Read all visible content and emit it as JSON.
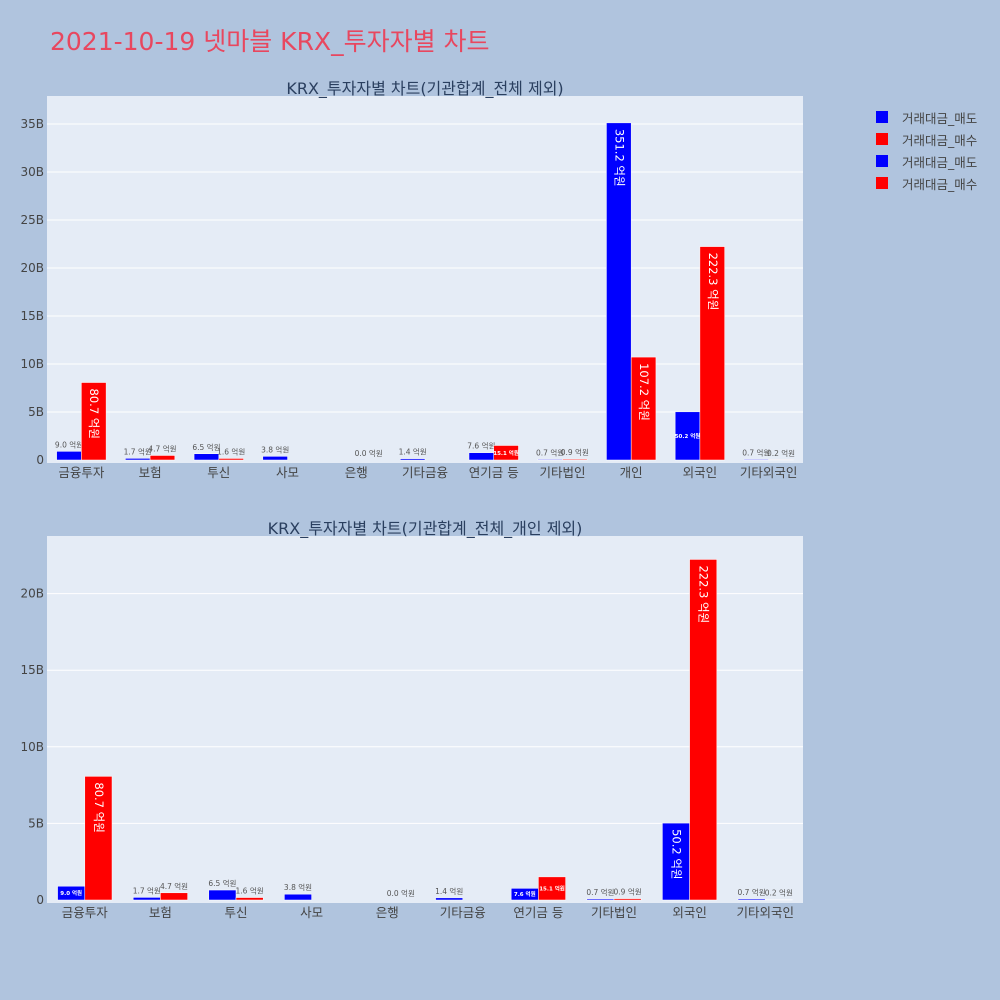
{
  "page": {
    "title": "2021-10-19 넷마블 KRX_투자자별 차트"
  },
  "legend": [
    {
      "label": "거래대금_매도",
      "color": "#0000ff"
    },
    {
      "label": "거래대금_매수",
      "color": "#ff0000"
    },
    {
      "label": "거래대금_매도",
      "color": "#0000ff"
    },
    {
      "label": "거래대금_매수",
      "color": "#ff0000"
    }
  ],
  "chart_data": [
    {
      "type": "bar",
      "title": "KRX_투자자별 차트(기관합계_전체 제외)",
      "categories": [
        "금융투자",
        "보험",
        "투신",
        "사모",
        "은행",
        "기타금융",
        "연기금 등",
        "기타법인",
        "개인",
        "외국인",
        "기타외국인"
      ],
      "ylim": [
        0,
        37.5
      ],
      "yticks": [
        0,
        5,
        10,
        15,
        20,
        25,
        30,
        35
      ],
      "ytick_labels": [
        "0",
        "5B",
        "10B",
        "15B",
        "20B",
        "25B",
        "30B",
        "35B"
      ],
      "grid": true,
      "series": [
        {
          "name": "거래대금_매도",
          "color": "#0000ff",
          "values": [
            0.9,
            0.17,
            0.65,
            0.38,
            0.0,
            0.14,
            0.76,
            0.07,
            35.12,
            5.02,
            0.07
          ],
          "labels": [
            "9.0 억원",
            "1.7 억원",
            "6.5 억원",
            "3.8 억원",
            "",
            "1.4 억원",
            "7.6 억원",
            "0.7 억원",
            "351.2 억원",
            "50.2 억원",
            "0.7 억원"
          ]
        },
        {
          "name": "거래대금_매수",
          "color": "#ff0000",
          "values": [
            8.07,
            0.47,
            0.16,
            0.0,
            0.0,
            0.0,
            1.51,
            0.09,
            10.72,
            22.23,
            0.02
          ],
          "labels": [
            "80.7 억원",
            "4.7 억원",
            "1.6 억원",
            "",
            "0.0 억원",
            "",
            "15.1 억원",
            "0.9 억원",
            "107.2 억원",
            "222.3 억원",
            "0.2 억원"
          ]
        }
      ]
    },
    {
      "type": "bar",
      "title": "KRX_투자자별 차트(기관합계_전체_개인 제외)",
      "categories": [
        "금융투자",
        "보험",
        "투신",
        "사모",
        "은행",
        "기타금융",
        "연기금 등",
        "기타법인",
        "외국인",
        "기타외국인"
      ],
      "ylim": [
        0,
        23.5
      ],
      "yticks": [
        0,
        5,
        10,
        15,
        20
      ],
      "ytick_labels": [
        "0",
        "5B",
        "10B",
        "15B",
        "20B"
      ],
      "grid": true,
      "series": [
        {
          "name": "거래대금_매도",
          "color": "#0000ff",
          "values": [
            0.9,
            0.17,
            0.65,
            0.38,
            0.0,
            0.14,
            0.76,
            0.07,
            5.02,
            0.07
          ],
          "labels": [
            "9.0 억원",
            "1.7 억원",
            "6.5 억원",
            "3.8 억원",
            "",
            "1.4 억원",
            "7.6 억원",
            "0.7 억원",
            "50.2 억원",
            "0.7 억원"
          ]
        },
        {
          "name": "거래대금_매수",
          "color": "#ff0000",
          "values": [
            8.07,
            0.47,
            0.16,
            0.0,
            0.0,
            0.0,
            1.51,
            0.09,
            22.23,
            0.02
          ],
          "labels": [
            "80.7 억원",
            "4.7 억원",
            "1.6 억원",
            "",
            "0.0 억원",
            "",
            "15.1 억원",
            "0.9 억원",
            "222.3 억원",
            "0.2 억원"
          ]
        }
      ]
    }
  ]
}
